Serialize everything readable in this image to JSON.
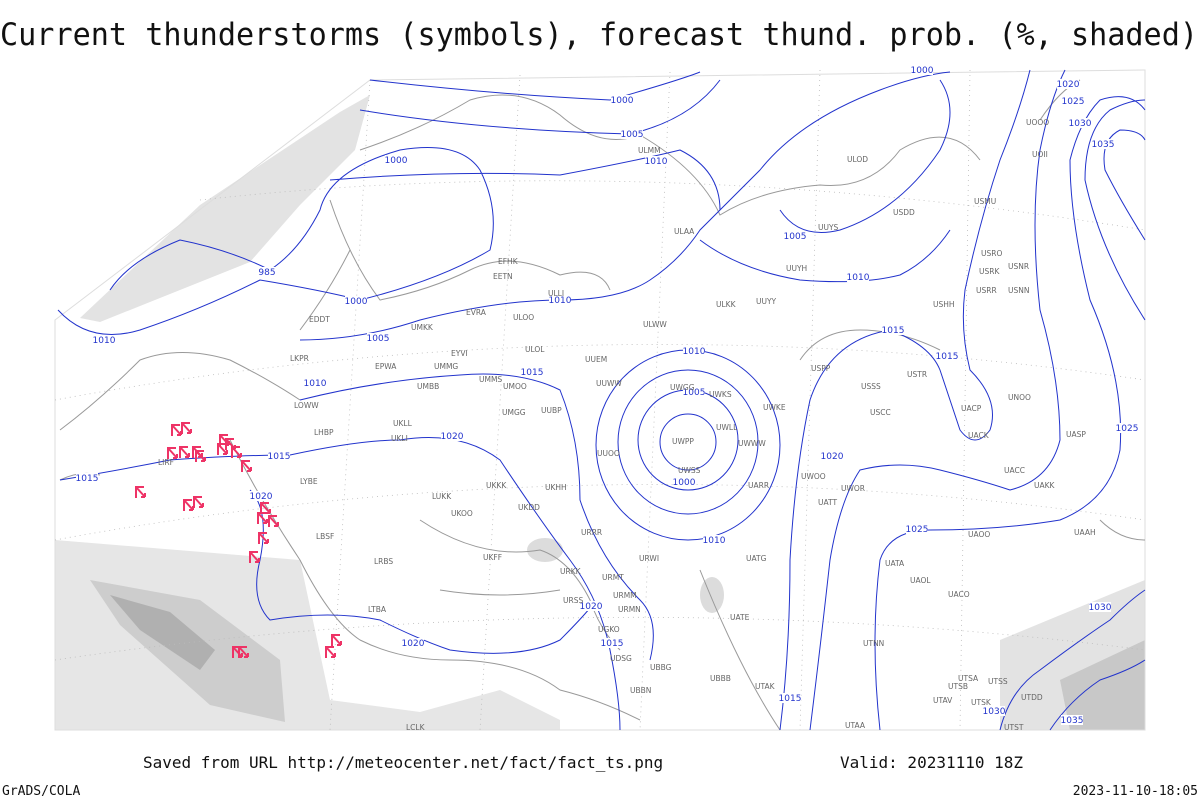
{
  "title": "Current thunderstorms (symbols), forecast thund. prob. (%, shaded)",
  "footer": {
    "source": "Saved from URL http://meteocenter.net/fact/fact_ts.png",
    "valid": "Valid: 20231110 18Z",
    "credit": "GrADS/COLA",
    "timestamp": "2023-11-10-18:05"
  },
  "isobar_labels": [
    1000,
    1005,
    1010,
    1000,
    1020,
    1025,
    1030,
    1035,
    1000,
    985,
    1000,
    1010,
    1005,
    1010,
    1010,
    1005,
    1010,
    1015,
    1015,
    1010,
    1005,
    1000,
    1010,
    1015,
    1020,
    1015,
    1015,
    1020,
    1020,
    1025,
    1025,
    1020,
    1015,
    1020,
    1015,
    1030,
    1030,
    1035
  ],
  "stations": [
    "ULAA",
    "ULLI",
    "ULOO",
    "EFHK",
    "EETN",
    "EVRA",
    "UMKK",
    "EPWA",
    "UMMG",
    "UMMS",
    "UMOO",
    "UUEM",
    "UUWW",
    "UWGG",
    "UWKS",
    "UWKE",
    "UWLL",
    "UWWW",
    "UWPP",
    "UWSS",
    "UUOO",
    "UKHH",
    "UKFF",
    "URRR",
    "URWI",
    "UATG",
    "URMT",
    "URMM",
    "URMN",
    "URSS",
    "ULOL",
    "UMGG",
    "UUBP",
    "UKLL",
    "UKLI",
    "UMBB",
    "EYVI",
    "ULKK",
    "UUYY",
    "UUYH",
    "UUYS",
    "ULWW",
    "USMU",
    "USRR",
    "USRK",
    "USRO",
    "USNR",
    "USNN",
    "USHH",
    "USPP",
    "USSS",
    "USCC",
    "USTR",
    "UACP",
    "UACK",
    "UNOO",
    "UASP",
    "UACC",
    "UAKK",
    "UAOO",
    "UAAH",
    "UATA",
    "UAOL",
    "UACO",
    "UTNN",
    "UTSA",
    "UTSB",
    "UTSS",
    "UTAV",
    "UTSK",
    "UTDD",
    "UTST",
    "UTAA",
    "UTAK",
    "UBBB",
    "UATE",
    "UARR",
    "UWOO",
    "UWOR",
    "UATT",
    "ULOD",
    "USDD",
    "UOII",
    "UOOO",
    "ULMM",
    "EDDT",
    "LKPR",
    "LOWW",
    "LHBP",
    "LYBE",
    "LBSF",
    "LRBS",
    "LTBA",
    "LIRF",
    "UKOO",
    "LUKK",
    "UKDD",
    "UKKK",
    "LCLK",
    "URKK",
    "UBBN",
    "UBBG",
    "UGKO",
    "UDSG"
  ]
}
